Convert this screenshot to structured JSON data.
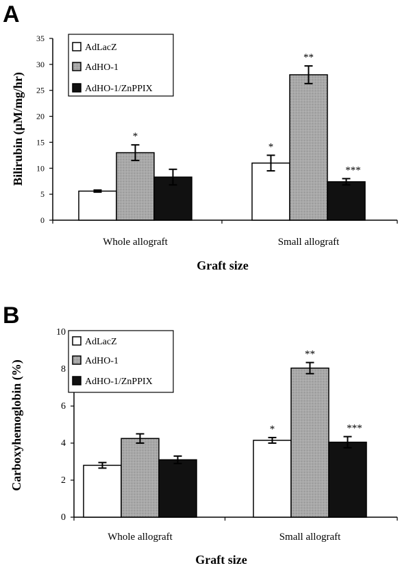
{
  "colors": {
    "AdLacZ": "#ffffff",
    "AdHO-1": "#a8a8a8",
    "AdHO-1/ZnPPIX": "#111111"
  },
  "chart_data": [
    {
      "type": "bar",
      "panel": "A",
      "categories": [
        "Whole allograft",
        "Small allograft"
      ],
      "xlabel": "Graft size",
      "ylabel": "Bilirubin (μM/mg/hr)",
      "ylim": [
        0,
        35
      ],
      "yticks": [
        "0",
        "5",
        "10",
        "15",
        "20",
        "25",
        "30",
        "35"
      ],
      "legend": "top-left",
      "series": [
        {
          "name": "AdLacZ",
          "values": [
            5.6,
            11.0
          ],
          "errors": [
            0.2,
            1.5
          ],
          "significance": [
            "",
            "*"
          ]
        },
        {
          "name": "AdHO-1",
          "values": [
            13.0,
            28.0
          ],
          "errors": [
            1.5,
            1.7
          ],
          "significance": [
            "*",
            "**"
          ]
        },
        {
          "name": "AdHO-1/ZnPPIX",
          "values": [
            8.3,
            7.4
          ],
          "errors": [
            1.5,
            0.6
          ],
          "significance": [
            "",
            "***"
          ]
        }
      ]
    },
    {
      "type": "bar",
      "panel": "B",
      "categories": [
        "Whole allograft",
        "Small allograft"
      ],
      "xlabel": "Graft size",
      "ylabel": "Carboxyhemoglobin (%)",
      "ylim": [
        0,
        10
      ],
      "yticks": [
        "0",
        "2",
        "4",
        "6",
        "8",
        "10"
      ],
      "legend": "top-left",
      "series": [
        {
          "name": "AdLacZ",
          "values": [
            2.8,
            4.15
          ],
          "errors": [
            0.15,
            0.15
          ],
          "significance": [
            "",
            "*"
          ]
        },
        {
          "name": "AdHO-1",
          "values": [
            4.25,
            8.05
          ],
          "errors": [
            0.25,
            0.3
          ],
          "significance": [
            "",
            "**"
          ]
        },
        {
          "name": "AdHO-1/ZnPPIX",
          "values": [
            3.1,
            4.05
          ],
          "errors": [
            0.2,
            0.3
          ],
          "significance": [
            "",
            "***"
          ]
        }
      ]
    }
  ]
}
